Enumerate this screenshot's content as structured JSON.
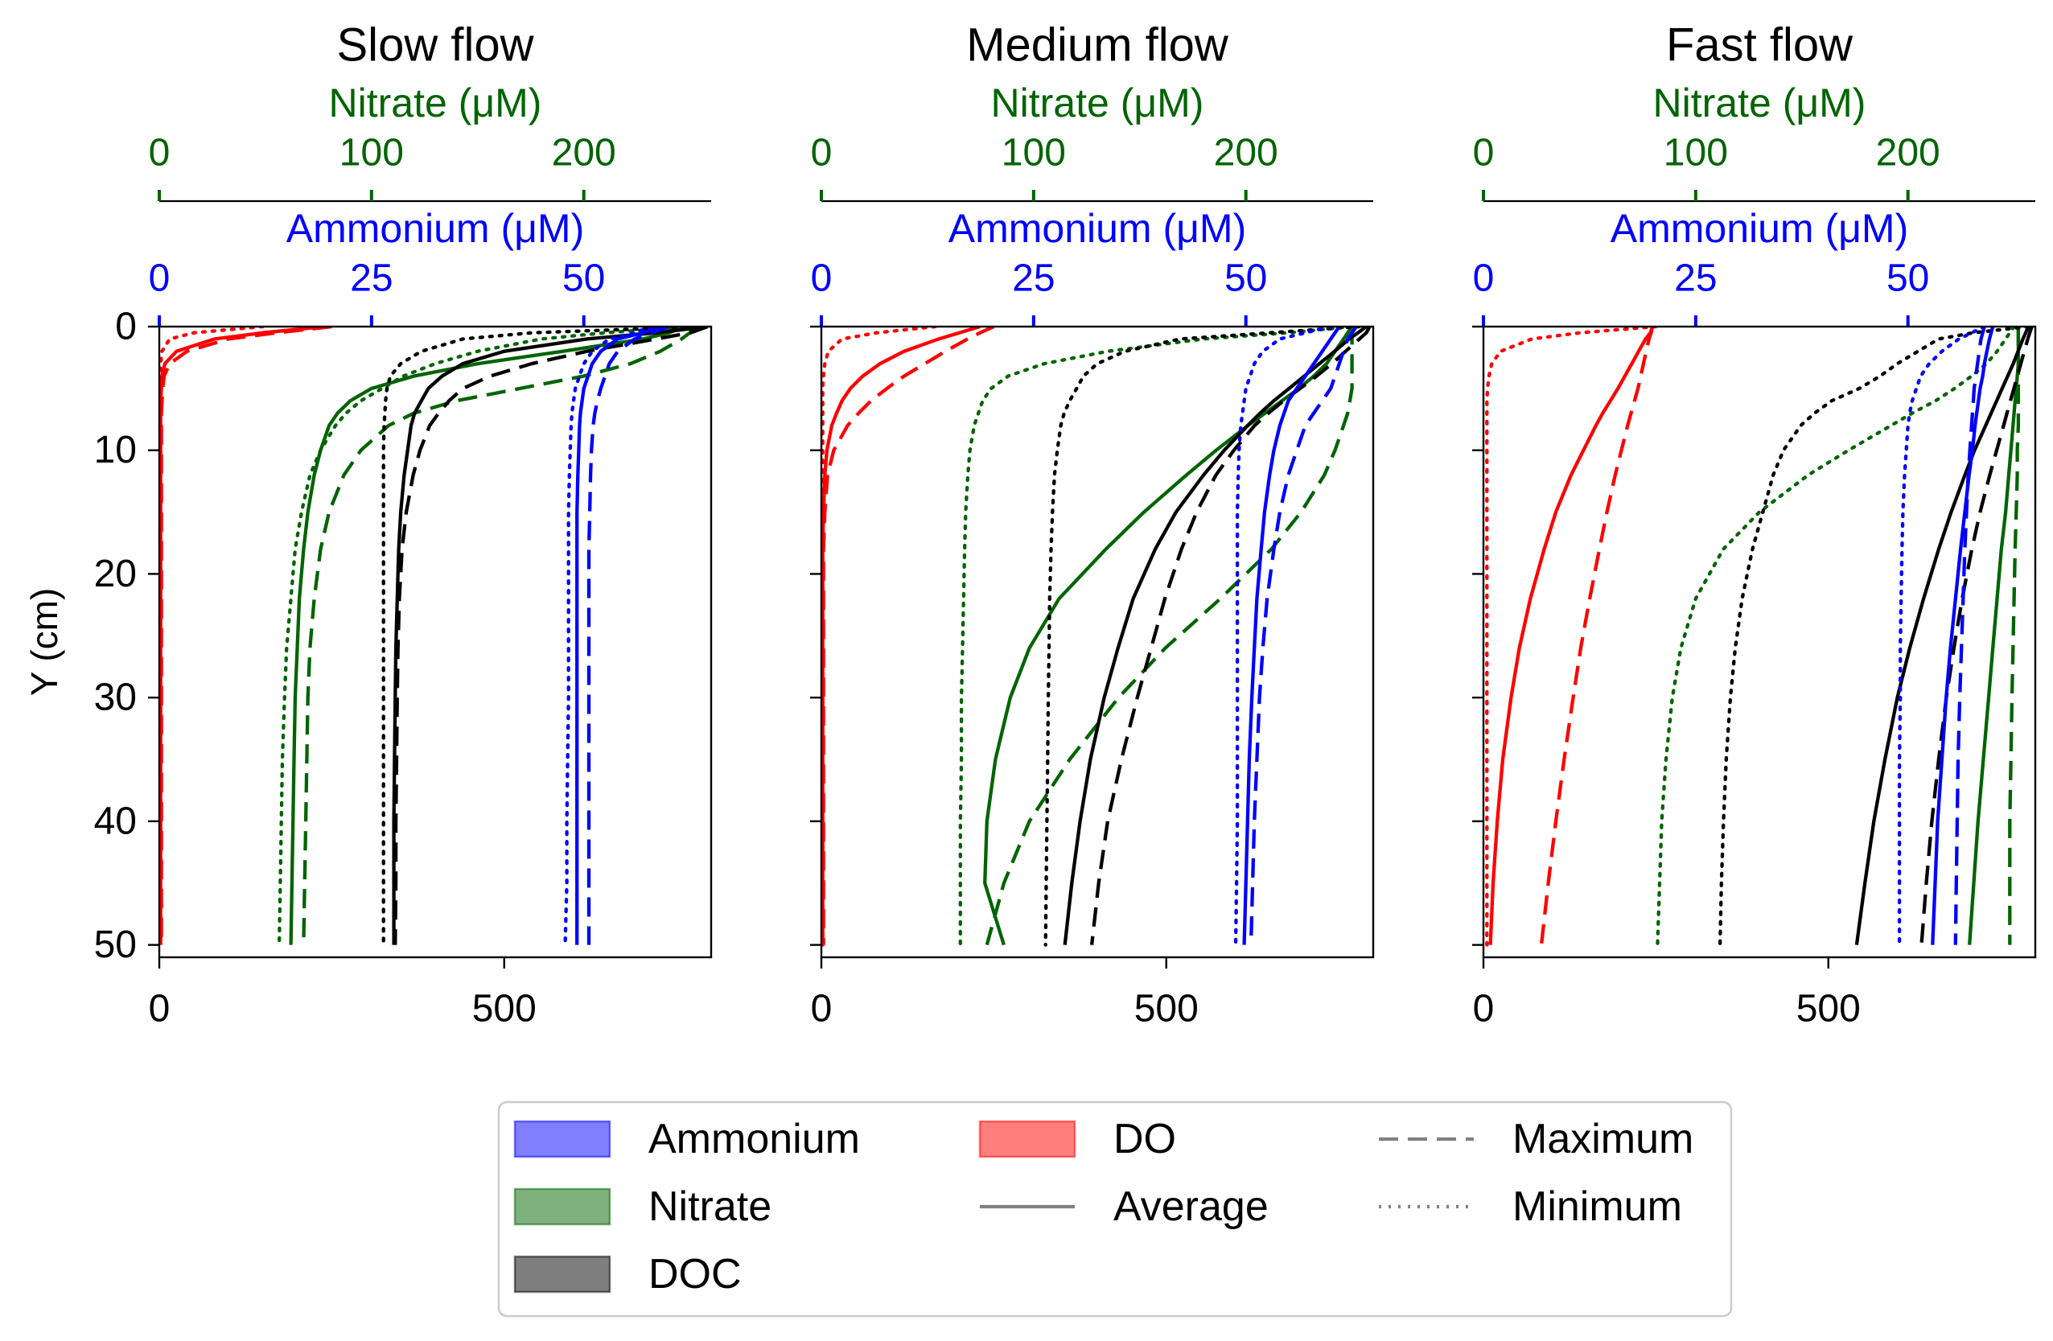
{
  "chart_data": {
    "type": "line",
    "shared": {
      "ylabel": "Y (cm)",
      "ylim": [
        0,
        51
      ],
      "y_inverted": true,
      "yticks": [
        0,
        10,
        20,
        30,
        40,
        50
      ],
      "bottom_xlim": [
        0,
        800
      ],
      "bottom_xticks": [
        0,
        500
      ],
      "top_axes": [
        {
          "label": "Nitrate (μM)",
          "color": "#006400",
          "xlim": [
            0,
            260
          ],
          "ticks": [
            0,
            100,
            200
          ]
        },
        {
          "label": "Ammonium (μM)",
          "color": "#0000ff",
          "xlim": [
            0,
            65
          ],
          "ticks": [
            0,
            25,
            50
          ]
        }
      ],
      "y_sample": [
        0,
        0.5,
        1,
        2,
        3,
        4,
        5,
        6,
        7,
        8,
        10,
        12,
        15,
        18,
        22,
        26,
        30,
        35,
        40,
        45,
        50
      ],
      "colors": {
        "Ammonium": "#0000ff",
        "Nitrate": "#006400",
        "DOC": "#000000",
        "DO": "#ff0000"
      },
      "line_styles": {
        "Average": "solid",
        "Maximum": "dashed",
        "Minimum": "dotted"
      }
    },
    "legend": {
      "placement": "bottom-center",
      "entries": [
        {
          "label": "Ammonium",
          "kind": "patch",
          "color": "#0000ff"
        },
        {
          "label": "Nitrate",
          "kind": "patch",
          "color": "#006400"
        },
        {
          "label": "DOC",
          "kind": "patch",
          "color": "#000000"
        },
        {
          "label": "DO",
          "kind": "patch",
          "color": "#ff0000"
        },
        {
          "label": "Average",
          "kind": "line",
          "style": "solid"
        },
        {
          "label": "Maximum",
          "kind": "line",
          "style": "dashed"
        },
        {
          "label": "Minimum",
          "kind": "line",
          "style": "dotted"
        }
      ]
    },
    "panels": [
      {
        "title": "Slow flow",
        "series": {
          "Ammonium": {
            "Average": [
              59,
              57,
              54,
              52,
              51,
              50.5,
              50,
              49.8,
              49.6,
              49.5,
              49.4,
              49.3,
              49.2,
              49.2,
              49.2,
              49.2,
              49.2,
              49.2,
              49.2,
              49.2,
              49.2
            ],
            "Maximum": [
              60,
              58,
              56,
              54,
              53,
              52.5,
              52,
              51.6,
              51.3,
              51.1,
              50.9,
              50.8,
              50.7,
              50.6,
              50.6,
              50.6,
              50.6,
              50.6,
              50.6,
              50.6,
              50.6
            ],
            "Minimum": [
              58,
              56,
              53,
              51,
              50,
              49.5,
              49,
              48.8,
              48.6,
              48.5,
              48.4,
              48.3,
              48.2,
              48.2,
              48.2,
              48.2,
              48.2,
              48.1,
              48.0,
              48.0,
              47.8
            ]
          },
          "Nitrate": {
            "Average": [
              248,
              240,
              228,
              190,
              150,
              120,
              100,
              90,
              84,
              80,
              76,
              73,
              70,
              68,
              66,
              65,
              64,
              63.5,
              63,
              62.5,
              62
            ],
            "Maximum": [
              252,
              250,
              246,
              236,
              222,
              200,
              170,
              140,
              120,
              108,
              95,
              87,
              80,
              76,
              73,
              71,
              70,
              69.5,
              69,
              68.5,
              68
            ],
            "Minimum": [
              250,
              210,
              180,
              150,
              130,
              115,
              105,
              95,
              88,
              83,
              76,
              71,
              67,
              64,
              62,
              60,
              59,
              58,
              57.5,
              57,
              56.5
            ]
          },
          "DOC": {
            "Average": [
              795,
              720,
              620,
              500,
              440,
              410,
              390,
              380,
              370,
              365,
              360,
              355,
              350,
              347,
              345,
              343,
              342,
              341,
              340,
              340,
              340
            ],
            "Maximum": [
              795,
              770,
              720,
              620,
              540,
              480,
              440,
              420,
              405,
              392,
              378,
              368,
              358,
              352,
              348,
              346,
              345,
              344,
              343,
              343,
              342
            ],
            "Minimum": [
              790,
              540,
              440,
              380,
              350,
              335,
              330,
              328,
              327,
              326,
              325,
              325,
              325,
              325,
              325,
              325,
              325,
              325,
              325,
              325,
              325
            ]
          },
          "DO": {
            "Average": [
              240,
              150,
              80,
              25,
              8,
              4,
              3,
              2,
              2,
              2,
              2,
              2,
              2,
              2,
              2,
              2,
              2,
              2,
              2,
              2,
              2
            ],
            "Maximum": [
              250,
              170,
              100,
              40,
              15,
              7,
              5,
              4,
              3,
              3,
              3,
              3,
              3,
              3,
              3,
              3,
              3,
              3,
              3,
              3,
              3
            ],
            "Minimum": [
              150,
              50,
              15,
              4,
              2,
              1,
              1,
              1,
              1,
              1,
              1,
              1,
              1,
              1,
              1,
              1,
              1,
              1,
              1,
              1,
              1
            ]
          }
        }
      },
      {
        "title": "Medium flow",
        "series": {
          "Ammonium": {
            "Average": [
              61,
              60.5,
              60,
              59,
              58,
              57,
              56,
              55,
              54.5,
              54,
              53.3,
              52.8,
              52.2,
              51.8,
              51.3,
              51,
              50.7,
              50.4,
              50.2,
              50,
              49.8
            ],
            "Maximum": [
              63,
              62.5,
              62,
              61.5,
              61,
              60.5,
              60,
              59,
              58,
              57,
              56,
              55,
              54,
              53.3,
              52.5,
              52,
              51.6,
              51.3,
              51,
              50.8,
              50.6
            ],
            "Minimum": [
              60,
              57,
              54,
              52,
              51,
              50.5,
              50,
              49.8,
              49.6,
              49.4,
              49.2,
              49.1,
              49.0,
              49.0,
              49.0,
              49.0,
              49.0,
              49.0,
              49.0,
              48.9,
              48.8
            ]
          },
          "Nitrate": {
            "Average": [
              250,
              248,
              246,
              242,
              238,
              232,
              225,
              217,
              209,
              201,
              186,
              172,
              152,
              134,
              112,
              98,
              89,
              82,
              78,
              77,
              86
            ],
            "Maximum": [
              252,
              250,
              250,
              250,
              250,
              250,
              250,
              249,
              248,
              246,
              242,
              237,
              226,
              212,
              188,
              162,
              140,
              117,
              98,
              86,
              78
            ],
            "Minimum": [
              250,
              220,
              180,
              135,
              105,
              88,
              80,
              76,
              74,
              72,
              70,
              69,
              68,
              67.5,
              67,
              66.5,
              66,
              66,
              65.5,
              65.5,
              65.5
            ]
          },
          "DOC": {
            "Average": [
              790,
              778,
              765,
              744,
              722,
              700,
              678,
              656,
              636,
              618,
              584,
              554,
              514,
              484,
              452,
              430,
              410,
              390,
              375,
              363,
              353
            ],
            "Maximum": [
              795,
              790,
              780,
              760,
              740,
              718,
              694,
              670,
              648,
              628,
              598,
              572,
              544,
              522,
              498,
              478,
              458,
              435,
              415,
              402,
              392
            ],
            "Minimum": [
              780,
              650,
              520,
              440,
              400,
              380,
              370,
              360,
              352,
              347,
              342,
              338,
              335,
              333,
              331,
              330,
              329,
              328,
              327,
              326,
              325
            ]
          },
          "DO": {
            "Average": [
              230,
              200,
              170,
              120,
              85,
              60,
              42,
              30,
              22,
              15,
              8,
              5,
              3,
              2,
              2,
              2,
              2,
              2,
              2,
              2,
              2
            ],
            "Maximum": [
              250,
              230,
              212,
              180,
              150,
              120,
              95,
              72,
              54,
              38,
              18,
              9,
              5,
              3,
              3,
              3,
              3,
              3,
              3,
              3,
              3
            ],
            "Minimum": [
              165,
              80,
              30,
              10,
              5,
              3,
              2,
              2,
              2,
              2,
              2,
              2,
              2,
              2,
              2,
              2,
              2,
              2,
              2,
              2,
              2
            ]
          }
        }
      },
      {
        "title": "Fast flow",
        "series": {
          "Ammonium": {
            "Average": [
              60,
              59.8,
              59.6,
              59.3,
              59,
              58.8,
              58.5,
              58.3,
              58.1,
              57.9,
              57.6,
              57.2,
              56.7,
              56.2,
              55.6,
              55,
              54.5,
              54,
              53.5,
              53.2,
              52.9
            ],
            "Maximum": [
              59,
              58.8,
              58.6,
              58.4,
              58.2,
              58,
              57.8,
              57.7,
              57.6,
              57.5,
              57.3,
              57.1,
              56.9,
              56.7,
              56.5,
              56.3,
              56.1,
              55.9,
              55.8,
              55.7,
              55.6
            ],
            "Minimum": [
              59,
              57.5,
              56,
              54,
              52.5,
              51.5,
              51,
              50.5,
              50.2,
              50,
              49.8,
              49.6,
              49.4,
              49.3,
              49.2,
              49.1,
              49.1,
              49.0,
              49.0,
              49.0,
              49.0
            ]
          },
          "Nitrate": {
            "Average": [
              252,
              252,
              252,
              252,
              252,
              251.5,
              251,
              250.5,
              250,
              249.5,
              248.5,
              247.5,
              246,
              244,
              242,
              240,
              238,
              235.5,
              233,
              231,
              229
            ],
            "Maximum": [
              252,
              252,
              252,
              252,
              252,
              252,
              252,
              252,
              252,
              252,
              251.5,
              251.5,
              251,
              250.5,
              250,
              249.5,
              249,
              248.5,
              248,
              248,
              248
            ],
            "Minimum": [
              250,
              248,
              246,
              242,
              237,
              230,
              222,
              213,
              202,
              192,
              172,
              153,
              130,
              113,
              100,
              93,
              89,
              86,
              84,
              83,
              82
            ]
          },
          "DOC": {
            "Average": [
              790,
              786,
              782,
              775,
              768,
              760,
              752,
              744,
              736,
              728,
              712,
              698,
              678,
              660,
              638,
              618,
              600,
              582,
              566,
              553,
              541
            ],
            "Maximum": [
              795,
              792,
              789,
              784,
              779,
              774,
              769,
              764,
              759,
              754,
              744,
              734,
              720,
              708,
              694,
              682,
              671,
              660,
              650,
              642,
              635
            ],
            "Minimum": [
              790,
              710,
              660,
              630,
              600,
              575,
              545,
              505,
              480,
              460,
              435,
              420,
              405,
              390,
              375,
              365,
              358,
              352,
              348,
              345,
              343
            ]
          },
          "DO": {
            "Average": [
              245,
              242,
              235,
              225,
              215,
              205,
              195,
              184,
              173,
              163,
              145,
              127,
              105,
              88,
              68,
              52,
              40,
              28,
              20,
              14,
              10
            ],
            "Maximum": [
              245,
              243,
              240,
              236,
              232,
              228,
              224,
              219,
              214,
              209,
              200,
              191,
              179,
              168,
              154,
              141,
              130,
              117,
              105,
              94,
              84
            ],
            "Minimum": [
              250,
              140,
              70,
              25,
              12,
              8,
              6,
              5,
              5,
              5,
              5,
              5,
              5,
              5,
              5,
              5,
              5,
              5,
              5,
              5,
              5
            ]
          }
        }
      }
    ]
  }
}
